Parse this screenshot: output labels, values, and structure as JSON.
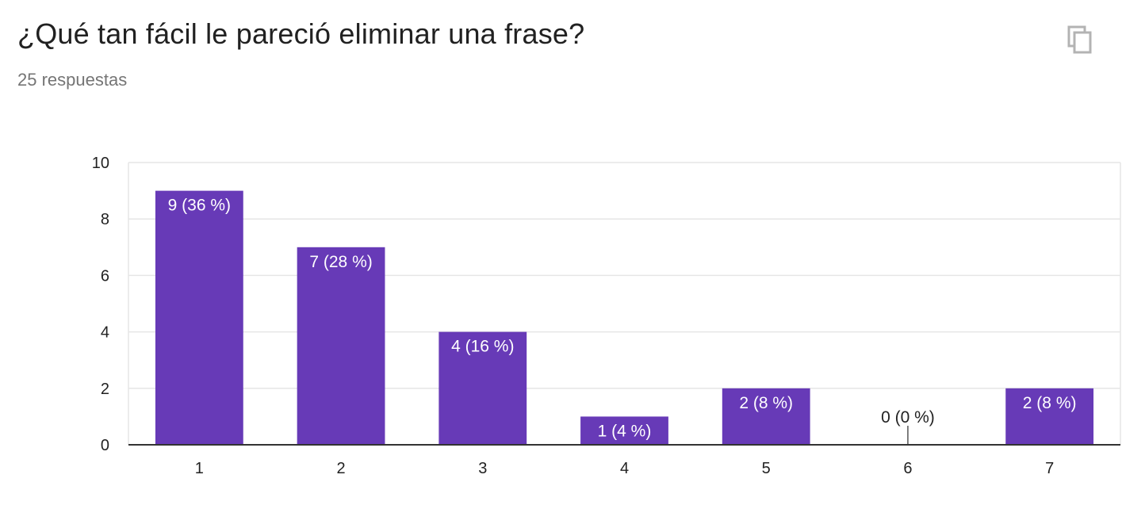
{
  "header": {
    "title": "¿Qué tan fácil le pareció eliminar una frase?",
    "subtitle": "25 respuestas",
    "copy_icon": "copy-icon"
  },
  "colors": {
    "bar": "#673ab7",
    "grid": "#e6e6e6",
    "axis": "#333333",
    "title": "#212121",
    "subtitle": "#757575",
    "icon": "#b3b3b3"
  },
  "chart_data": {
    "type": "bar",
    "title": "",
    "xlabel": "",
    "ylabel": "",
    "categories": [
      "1",
      "2",
      "3",
      "4",
      "5",
      "6",
      "7"
    ],
    "values": [
      9,
      7,
      4,
      1,
      2,
      0,
      2
    ],
    "data_labels": [
      "9 (36 %)",
      "7 (28 %)",
      "4 (16 %)",
      "1 (4 %)",
      "2 (8 %)",
      "0 (0 %)",
      "2 (8 %)"
    ],
    "ylim": [
      0,
      10
    ],
    "yticks": [
      0,
      2,
      4,
      6,
      8,
      10
    ],
    "grid": true,
    "legend": "none"
  }
}
